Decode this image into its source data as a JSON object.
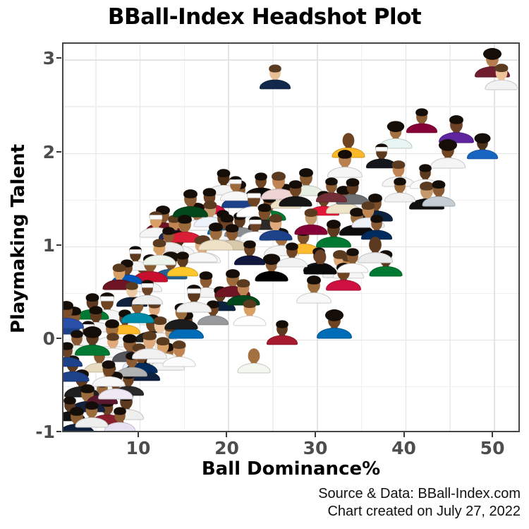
{
  "page": {
    "title": "BBall-Index Headshot Plot"
  },
  "chart_data": {
    "type": "scatter",
    "title": "BBall-Index Headshot Plot",
    "xlabel": "Ball Dominance%",
    "ylabel": "Playmaking Talent",
    "xlim": [
      1.4,
      53.1
    ],
    "ylim": [
      -1.01,
      3.17
    ],
    "x_ticks_major": [
      10,
      20,
      30,
      40,
      50
    ],
    "x_ticks_minor": [
      5,
      15,
      25,
      35,
      45
    ],
    "y_ticks_major": [
      3,
      2,
      1,
      0,
      -1
    ],
    "y_ticks_minor": [
      2.5,
      1.5,
      0.5,
      -0.5
    ],
    "grid": true,
    "marker_style": "nba-player-headshot",
    "source_line1": "Source & Data: BBall-Index.com",
    "source_line2": "Chart created on July 27, 2022",
    "colors": {
      "grid_major": "#e4e4e4",
      "grid_minor": "#f0f0f0",
      "panel_border": "#474747",
      "tick_text": "#4d4d4d",
      "title_text": "#000000"
    },
    "points": [
      {
        "x": 25.3,
        "y": 2.83,
        "j": "#13294b",
        "k": "#e8bf96",
        "h": "s"
      },
      {
        "x": 49.8,
        "y": 2.97,
        "j": "#6f1d2f",
        "k": "#b57c50",
        "h": "l"
      },
      {
        "x": 50.9,
        "y": 2.83,
        "j": "#f2f2f2",
        "k": "#eec39a",
        "h": "s"
      },
      {
        "x": 41.9,
        "y": 2.36,
        "j": "#860038",
        "k": "#8a5a33",
        "h": "s"
      },
      {
        "x": 45.8,
        "y": 2.27,
        "j": "#5f259f",
        "k": "#6b4226",
        "h": "s"
      },
      {
        "x": 38.9,
        "y": 2.2,
        "j": "#e9f5f3",
        "k": "#a3713f",
        "h": "l"
      },
      {
        "x": 48.7,
        "y": 2.08,
        "j": "#1865c1",
        "k": "#4f3319",
        "h": "l"
      },
      {
        "x": 44.8,
        "y": 2.0,
        "j": "#f5f5f5",
        "k": "#70451f",
        "h": "l"
      },
      {
        "x": 33.6,
        "y": 2.1,
        "j": "#fdb927",
        "k": "#6e4423",
        "h": "x"
      },
      {
        "x": 37.3,
        "y": 1.98,
        "j": "#14171c",
        "k": "#5d3a1f",
        "h": "b"
      },
      {
        "x": 33.2,
        "y": 1.9,
        "j": "#f5f5f5",
        "k": "#b97f4e",
        "h": "s"
      },
      {
        "x": 19.5,
        "y": 1.7,
        "j": "#f3f3f3",
        "k": "#4a2c12",
        "h": "s"
      },
      {
        "x": 23.7,
        "y": 1.67,
        "j": "#0a0a0a",
        "k": "#6e4423",
        "h": "s"
      },
      {
        "x": 28.8,
        "y": 1.7,
        "j": "#e7efe2",
        "k": "#8a5a33",
        "h": "s"
      },
      {
        "x": 24.7,
        "y": 1.43,
        "j": "#007a33",
        "k": "#7d4e2a",
        "h": "s"
      },
      {
        "x": 30.8,
        "y": 1.47,
        "j": "#e31837",
        "k": "#6b4226",
        "h": "s"
      },
      {
        "x": 33.0,
        "y": 1.51,
        "j": "#efe3c8",
        "k": "#9c6b3c",
        "h": "s"
      },
      {
        "x": 39.2,
        "y": 1.79,
        "j": "#f6f6f6",
        "k": "#c08552",
        "h": "s"
      },
      {
        "x": 42.3,
        "y": 1.76,
        "j": "#fbfbfb",
        "k": "#5d3a1f",
        "h": "s"
      },
      {
        "x": 42.4,
        "y": 1.56,
        "j": "#101010",
        "k": "#c49a6c",
        "h": "s"
      },
      {
        "x": 43.8,
        "y": 1.58,
        "j": "#c4ced4",
        "k": "#8a5a33",
        "h": "s"
      },
      {
        "x": 39.4,
        "y": 1.62,
        "j": "#f2f2f2",
        "k": "#9c6b3c",
        "h": "s"
      },
      {
        "x": 36.6,
        "y": 1.43,
        "j": "#0c2340",
        "k": "#7d4e2a",
        "h": "s"
      },
      {
        "x": 34.1,
        "y": 1.6,
        "j": "#6e6f72",
        "k": "#5d3a1f",
        "h": "s"
      },
      {
        "x": 26.5,
        "y": 1.55,
        "j": "#eee1c6",
        "k": "#6e4423",
        "h": "s"
      },
      {
        "x": 21.2,
        "y": 1.57,
        "j": "#1d428a",
        "k": "#8a5a33",
        "h": "s"
      },
      {
        "x": 17.9,
        "y": 1.5,
        "j": "#ce1141",
        "k": "#6b4226",
        "h": "s"
      },
      {
        "x": 20.8,
        "y": 1.63,
        "j": "#f7f7f7",
        "k": "#9c6b3c",
        "h": "b"
      },
      {
        "x": 25.7,
        "y": 1.66,
        "j": "#efd4d4",
        "k": "#c08552",
        "h": "s"
      },
      {
        "x": 27.6,
        "y": 1.58,
        "j": "#151515",
        "k": "#6e4423",
        "h": "s"
      },
      {
        "x": 31.7,
        "y": 1.62,
        "j": "#722f37",
        "k": "#8a5a33",
        "h": "s"
      },
      {
        "x": 12.6,
        "y": 1.3,
        "j": "#6e1423",
        "k": "#8a5a33",
        "h": "s"
      },
      {
        "x": 11.8,
        "y": 1.25,
        "j": "#f5f5f5",
        "k": "#d9a066",
        "h": "b"
      },
      {
        "x": 13.9,
        "y": 1.22,
        "j": "#1d2951",
        "k": "#c08552",
        "h": "s"
      },
      {
        "x": 16.5,
        "y": 1.33,
        "j": "#fafafa",
        "k": "#9c6b3c",
        "h": "s"
      },
      {
        "x": 18.0,
        "y": 1.36,
        "j": "#eef2fb",
        "k": "#c49a6c",
        "h": "s"
      },
      {
        "x": 19.4,
        "y": 1.27,
        "j": "#006bb6",
        "k": "#5d3a1f",
        "h": "s"
      },
      {
        "x": 15.7,
        "y": 1.47,
        "j": "#00471b",
        "k": "#8a5a33",
        "h": "s"
      },
      {
        "x": 19.9,
        "y": 1.22,
        "j": "#f3f3f3",
        "k": "#6b4226",
        "h": "s"
      },
      {
        "x": 21.3,
        "y": 1.25,
        "j": "#8d9093",
        "k": "#5d3a1f",
        "h": "s"
      },
      {
        "x": 22.9,
        "y": 1.47,
        "j": "#fcfcfc",
        "k": "#6e4423",
        "h": "b"
      },
      {
        "x": 24.1,
        "y": 1.33,
        "j": "#2d2926",
        "k": "#7d4e2a",
        "h": "s"
      },
      {
        "x": 14.5,
        "y": 1.05,
        "j": "#f5f5f5",
        "k": "#4a2c12",
        "h": "b"
      },
      {
        "x": 17.2,
        "y": 0.98,
        "j": "#f8f8f8",
        "k": "#d9a066",
        "h": "s"
      },
      {
        "x": 20.4,
        "y": 1.11,
        "j": "#d7c9aa",
        "k": "#8a5a33",
        "h": "s"
      },
      {
        "x": 23.1,
        "y": 1.2,
        "j": "#ffffff",
        "k": "#6b4226",
        "h": "b"
      },
      {
        "x": 26.0,
        "y": 1.06,
        "j": "#f4f4f4",
        "k": "#a3713f",
        "h": "s"
      },
      {
        "x": 28.5,
        "y": 1.07,
        "j": "#fdbb30",
        "k": "#7d4e2a",
        "h": "s"
      },
      {
        "x": 30.2,
        "y": 0.87,
        "j": "#17171a",
        "k": "#5d3a1f",
        "h": "s"
      },
      {
        "x": 32.6,
        "y": 0.82,
        "j": "#f0f0f0",
        "k": "#e0ab7c",
        "h": "s"
      },
      {
        "x": 24.9,
        "y": 0.78,
        "j": "#000000",
        "k": "#8a5a33",
        "h": "l"
      },
      {
        "x": 22.4,
        "y": 0.94,
        "j": "#12173f",
        "k": "#6e4423",
        "h": "s"
      },
      {
        "x": 15.1,
        "y": 1.2,
        "j": "#d91e36",
        "k": "#9c6b3c",
        "h": "s"
      },
      {
        "x": 16.9,
        "y": 0.98,
        "j": "#f7f7f7",
        "k": "#e0ab7c",
        "h": "s"
      },
      {
        "x": 13.3,
        "y": 1.09,
        "j": "#ededed",
        "k": "#8a5a33",
        "h": "s"
      },
      {
        "x": 10.6,
        "y": 0.67,
        "j": "#f5f5f5",
        "k": "#ecc9a3",
        "h": "s"
      },
      {
        "x": 13.5,
        "y": 0.8,
        "j": "#236192",
        "k": "#7d4e2a",
        "h": "l"
      },
      {
        "x": 14.9,
        "y": 0.82,
        "j": "#ffc72c",
        "k": "#5d3a1f",
        "h": "s"
      },
      {
        "x": 34.5,
        "y": 1.28,
        "j": "#0c0c0c",
        "k": "#9c6b3c",
        "h": "s"
      },
      {
        "x": 35.8,
        "y": 1.35,
        "j": "#eef2f8",
        "k": "#c08552",
        "h": "s"
      },
      {
        "x": 36.8,
        "y": 1.22,
        "j": "#002b5c",
        "k": "#8a5a33",
        "h": "s"
      },
      {
        "x": 31.9,
        "y": 1.15,
        "j": "#007a33",
        "k": "#5d3a1f",
        "h": "s"
      },
      {
        "x": 29.4,
        "y": 1.28,
        "j": "#860038",
        "k": "#c49a6c",
        "h": "s"
      },
      {
        "x": 27.2,
        "y": 0.92,
        "j": "#f2f2f2",
        "k": "#6e4423",
        "h": "s"
      },
      {
        "x": 18.6,
        "y": 1.12,
        "j": "#eee1c6",
        "k": "#9c6b3c",
        "h": "s"
      },
      {
        "x": 25.4,
        "y": 1.22,
        "j": "#1d428a",
        "k": "#e0ab7c",
        "h": "s"
      },
      {
        "x": 9.5,
        "y": 0.88,
        "j": "#f5f5f5",
        "k": "#5d3a1f",
        "h": "b"
      },
      {
        "x": 11.2,
        "y": 0.78,
        "j": "#c8102e",
        "k": "#8a5a33",
        "h": "s"
      },
      {
        "x": 12.2,
        "y": 0.95,
        "j": "#ecf4ec",
        "k": "#d9a066",
        "h": "s"
      },
      {
        "x": 8.6,
        "y": 0.74,
        "j": "#0057b8",
        "k": "#6b4226",
        "h": "s"
      },
      {
        "x": 29.7,
        "y": 0.55,
        "j": "#f8f8f8",
        "k": "#9c6b3c",
        "h": "s"
      },
      {
        "x": 37.8,
        "y": 0.83,
        "j": "#007a33",
        "k": "#5d3a1f",
        "h": "s"
      },
      {
        "x": 33.6,
        "y": 0.8,
        "j": "#f6f6f6",
        "k": "#c08552",
        "h": "s"
      },
      {
        "x": 33.0,
        "y": 0.69,
        "j": "#ce1141",
        "k": "#6e4423",
        "h": "s"
      },
      {
        "x": 30.4,
        "y": 0.85,
        "j": "#0a0a0a",
        "k": "#6b4226",
        "h": "x"
      },
      {
        "x": 34.1,
        "y": 0.86,
        "j": "#fbfbfb",
        "k": "#8a5a33",
        "h": "s"
      },
      {
        "x": 36.6,
        "y": 0.98,
        "j": "#ececec",
        "k": "#5d3a1f",
        "h": "x"
      },
      {
        "x": 7.7,
        "y": 0.69,
        "j": "#6e1423",
        "k": "#d9a066",
        "h": "s"
      },
      {
        "x": 9.1,
        "y": 0.5,
        "j": "#0e2240",
        "k": "#ecc9a3",
        "h": "s"
      },
      {
        "x": 6.3,
        "y": 0.37,
        "j": "#f5f5f5",
        "k": "#6e4423",
        "h": "b"
      },
      {
        "x": 4.7,
        "y": 0.37,
        "j": "#007a33",
        "k": "#5d3a1f",
        "h": "s"
      },
      {
        "x": 8.3,
        "y": 0.2,
        "j": "#fdb927",
        "k": "#6b4226",
        "h": "s"
      },
      {
        "x": 2.6,
        "y": 0.22,
        "j": "#1d428a",
        "k": "#8a5a33",
        "h": "s"
      },
      {
        "x": 5.1,
        "y": 0.23,
        "j": "#f1f1f1",
        "k": "#5d3a1f",
        "h": "s"
      },
      {
        "x": 11.7,
        "y": 0.3,
        "j": "#fafafa",
        "k": "#e0ab7c",
        "h": "s"
      },
      {
        "x": 11.4,
        "y": 0.13,
        "j": "#1e1e1e",
        "k": "#6e4423",
        "h": "s"
      },
      {
        "x": 12.3,
        "y": 0.12,
        "j": "#f4f4f4",
        "k": "#ecc9a3",
        "h": "s"
      },
      {
        "x": 13.5,
        "y": 0.05,
        "j": "#f6f6f6",
        "k": "#c49a6c",
        "h": "s"
      },
      {
        "x": 15.3,
        "y": 0.17,
        "j": "#006bb6",
        "k": "#6b4226",
        "h": "s"
      },
      {
        "x": 14.7,
        "y": 0.26,
        "j": "#1b1b1b",
        "k": "#9c6b3c",
        "h": "s"
      },
      {
        "x": 4.2,
        "y": 0.08,
        "j": "#f3f3f3",
        "k": "#5d3a1f",
        "h": "b"
      },
      {
        "x": 6.9,
        "y": 0.08,
        "j": "#f7f7f7",
        "k": "#a3713f",
        "h": "s"
      },
      {
        "x": 17.5,
        "y": 0.6,
        "j": "#f3f3f3",
        "k": "#8a5a33",
        "h": "s"
      },
      {
        "x": 19.1,
        "y": 0.45,
        "j": "#0c2340",
        "k": "#5d3a1f",
        "h": "s"
      },
      {
        "x": 20.5,
        "y": 0.62,
        "j": "#6e1423",
        "k": "#9c6b3c",
        "h": "s"
      },
      {
        "x": 21.7,
        "y": 0.52,
        "j": "#00471b",
        "k": "#c08552",
        "h": "s"
      },
      {
        "x": 18.3,
        "y": 0.3,
        "j": "#97999b",
        "k": "#6e4423",
        "h": "s"
      },
      {
        "x": 16.1,
        "y": 0.45,
        "j": "#f0f0f0",
        "k": "#5d3a1f",
        "h": "b"
      },
      {
        "x": 9.8,
        "y": 0.33,
        "j": "#008ca8",
        "k": "#8a5a33",
        "h": "s"
      },
      {
        "x": 10.9,
        "y": 0.52,
        "j": "#eeeeee",
        "k": "#6b4226",
        "h": "b"
      },
      {
        "x": 1.7,
        "y": 0.28,
        "j": "#2b50aa",
        "k": "#7d4e2a",
        "h": "s"
      },
      {
        "x": 22.9,
        "y": -0.21,
        "j": "#f2f7f0",
        "k": "#a3713f",
        "h": "x"
      },
      {
        "x": 26.1,
        "y": 0.09,
        "j": "#a6192e",
        "k": "#5d3a1f",
        "h": "s"
      },
      {
        "x": 32.0,
        "y": 0.17,
        "j": "#006bb6",
        "k": "#6e4423",
        "h": "l"
      },
      {
        "x": 22.4,
        "y": 0.3,
        "j": "#fdfdfd",
        "k": "#d9a066",
        "h": "s"
      },
      {
        "x": 7.0,
        "y": -0.05,
        "j": "#f8f8f8",
        "k": "#e0ab7c",
        "h": "s"
      },
      {
        "x": 8.9,
        "y": -0.08,
        "j": "#53565a",
        "k": "#8a5a33",
        "h": "s"
      },
      {
        "x": 9.9,
        "y": -0.17,
        "j": "#e8eefc",
        "k": "#c08552",
        "h": "s"
      },
      {
        "x": 10.6,
        "y": -0.3,
        "j": "#0e2240",
        "k": "#7d4e2a",
        "h": "s"
      },
      {
        "x": 13.1,
        "y": -0.17,
        "j": "#f3f3f3",
        "k": "#9c6b3c",
        "h": "s"
      },
      {
        "x": 12.6,
        "y": -0.1,
        "j": "#fafafa",
        "k": "#d9a066",
        "h": "s"
      },
      {
        "x": 5.5,
        "y": -0.21,
        "j": "#e8dcc0",
        "k": "#8a5a33",
        "h": "s"
      },
      {
        "x": 3.5,
        "y": -0.46,
        "j": "#1f1f1f",
        "k": "#5d3a1f",
        "h": "s"
      },
      {
        "x": 6.6,
        "y": -0.39,
        "j": "#f6f6f6",
        "k": "#c49a6c",
        "h": "s"
      },
      {
        "x": 8.7,
        "y": -0.46,
        "j": "#2a2a2a",
        "k": "#6e4423",
        "h": "s"
      },
      {
        "x": 8.5,
        "y": -0.7,
        "j": "#efefef",
        "k": "#5d3a1f",
        "h": "s"
      },
      {
        "x": 6.3,
        "y": -0.76,
        "j": "#8b1e2d",
        "k": "#6b4226",
        "h": "s"
      },
      {
        "x": 7.8,
        "y": -0.84,
        "j": "#e6e0f0",
        "k": "#8a5a33",
        "h": "s"
      },
      {
        "x": 4.1,
        "y": -0.62,
        "j": "#14213d",
        "k": "#9c6b3c",
        "h": "s"
      },
      {
        "x": 2.4,
        "y": -0.3,
        "j": "#1d428a",
        "k": "#5d3a1f",
        "h": "s"
      },
      {
        "x": 2.9,
        "y": -0.02,
        "j": "#eaf2ea",
        "k": "#8a5a33",
        "h": "s"
      },
      {
        "x": 4.7,
        "y": -0.01,
        "j": "#007a33",
        "k": "#5d3a1f",
        "h": "l"
      },
      {
        "x": 10.2,
        "y": -0.21,
        "j": "#002b5c",
        "k": "#6e4423",
        "h": "x"
      },
      {
        "x": 9.1,
        "y": -0.25,
        "j": "#b1b3b3",
        "k": "#8a5a33",
        "h": "s"
      },
      {
        "x": 11.1,
        "y": -0.05,
        "j": "#f1f1f1",
        "k": "#e0ab7c",
        "h": "s"
      },
      {
        "x": 14.5,
        "y": -0.14,
        "j": "#fcfcfc",
        "k": "#c08552",
        "h": "s"
      },
      {
        "x": 5.8,
        "y": -0.55,
        "j": "#59182e",
        "k": "#9c6b3c",
        "h": "s"
      },
      {
        "x": 7.3,
        "y": -0.48,
        "j": "#f0e9f5",
        "k": "#6b4226",
        "h": "s"
      },
      {
        "x": 6.5,
        "y": -0.35,
        "j": "#f7f7f7",
        "k": "#6e4423",
        "h": "s"
      },
      {
        "x": 2.1,
        "y": -0.73,
        "j": "#111111",
        "k": "#5d3a1f",
        "h": "s"
      },
      {
        "x": 2.9,
        "y": -0.86,
        "j": "#0b1f3a",
        "k": "#8a5a33",
        "h": "s"
      },
      {
        "x": 4.6,
        "y": -0.79,
        "j": "#eeeeee",
        "k": "#9c6b3c",
        "h": "s"
      },
      {
        "x": 1.8,
        "y": -0.15,
        "j": "#1d428a",
        "k": "#6b4226",
        "h": "s"
      }
    ]
  }
}
